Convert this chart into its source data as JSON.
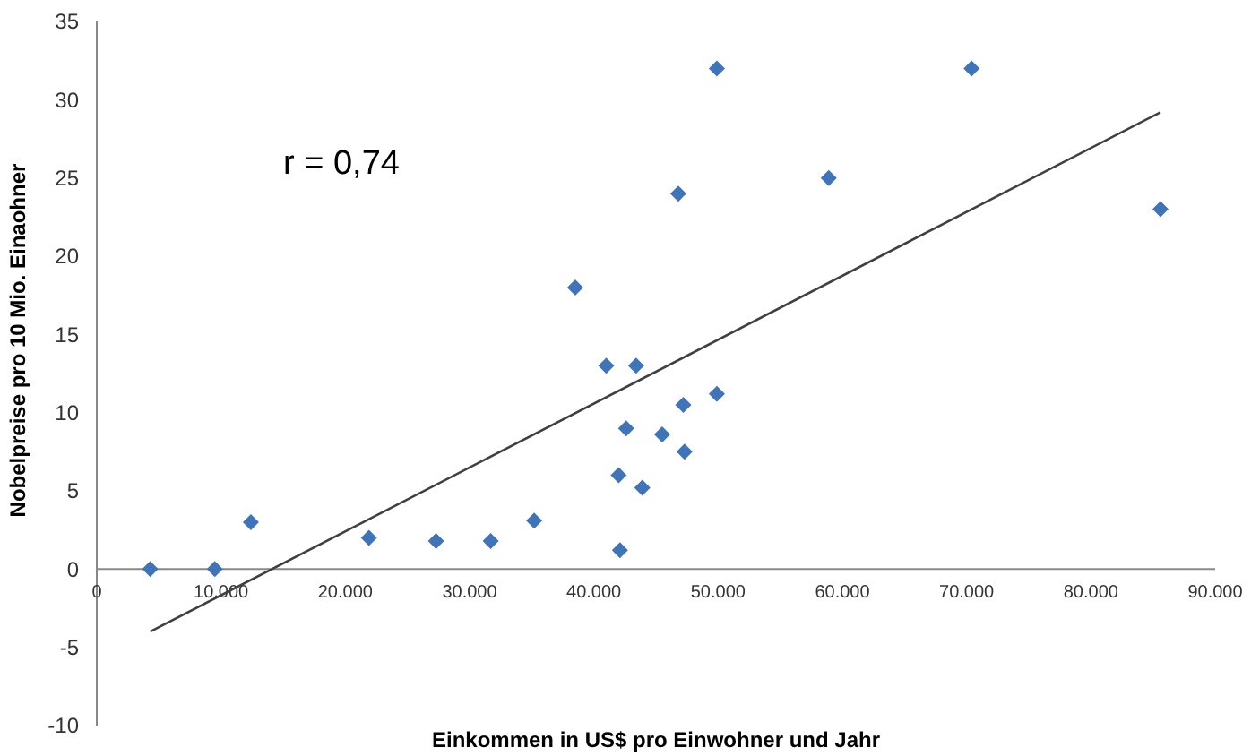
{
  "chart_data": {
    "type": "scatter",
    "xlabel": "Einkommen in US$ pro Einwohner und Jahr",
    "ylabel": "Nobelpreise pro 10 Mio. Einaohner",
    "annotations": [
      "r = 0,74"
    ],
    "xlim": [
      0,
      90000
    ],
    "xticks": [
      {
        "value": 0,
        "label": "0"
      },
      {
        "value": 10000,
        "label": "10.000"
      },
      {
        "value": 20000,
        "label": "20.000"
      },
      {
        "value": 30000,
        "label": "30.000"
      },
      {
        "value": 40000,
        "label": "40.000"
      },
      {
        "value": 50000,
        "label": "50.000"
      },
      {
        "value": 60000,
        "label": "60.000"
      },
      {
        "value": 70000,
        "label": "70.000"
      },
      {
        "value": 80000,
        "label": "80.000"
      },
      {
        "value": 90000,
        "label": "90.000"
      }
    ],
    "ylim": [
      -10,
      35
    ],
    "yticks": [
      -10,
      -5,
      0,
      5,
      10,
      15,
      20,
      25,
      30,
      35
    ],
    "grid": false,
    "series": [
      {
        "marker": "diamond",
        "color": "#3f74b9",
        "x": [
          4300,
          9500,
          12400,
          21900,
          27300,
          31700,
          35200,
          38500,
          41000,
          43400,
          42600,
          42000,
          42100,
          43900,
          45500,
          47200,
          47300,
          46800,
          49900,
          49900,
          58900,
          70400,
          85600
        ],
        "values": [
          0,
          0,
          3,
          2,
          1.8,
          1.8,
          3.1,
          18,
          13,
          13,
          9,
          6,
          1.2,
          5.2,
          8.6,
          10.5,
          7.5,
          24,
          32,
          11.2,
          25,
          32,
          23
        ]
      },
      {
        "type": "line",
        "marker": "none",
        "color": "#404040",
        "x": [
          4300,
          85600
        ],
        "values": [
          -4,
          29.2
        ]
      }
    ]
  }
}
